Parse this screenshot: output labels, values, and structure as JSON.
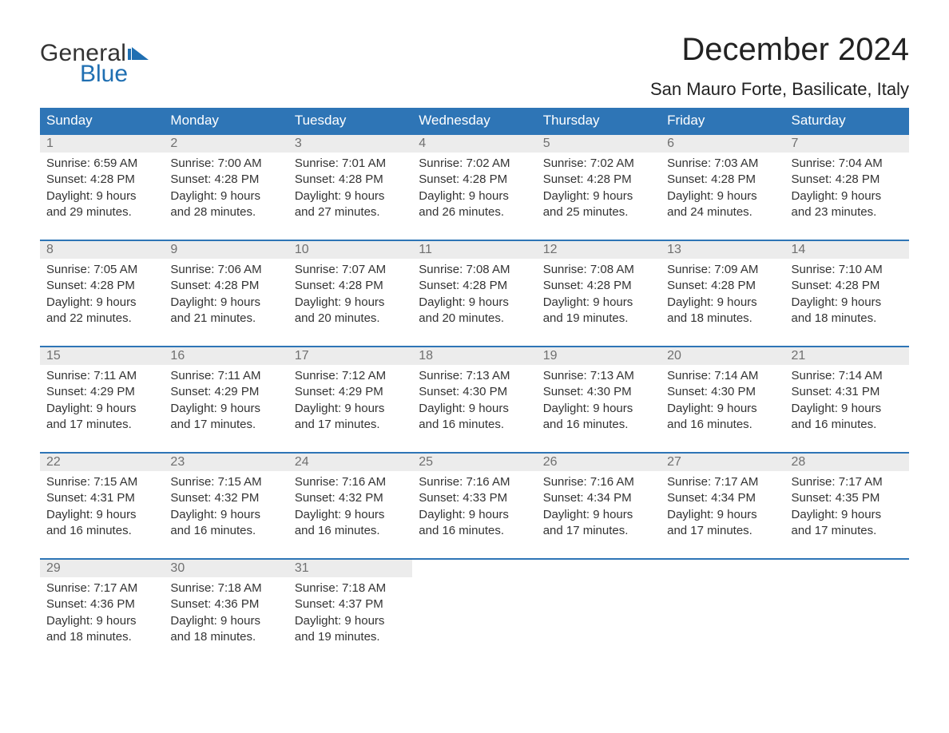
{
  "logo": {
    "word1": "General",
    "word2": "Blue",
    "flag_color": "#1f6fb2"
  },
  "title": "December 2024",
  "location": "San Mauro Forte, Basilicate, Italy",
  "colors": {
    "header_bg": "#2e75b6",
    "header_text": "#ffffff",
    "daynum_bg": "#ececec",
    "daynum_text": "#707070",
    "body_text": "#333333",
    "rule": "#2e75b6",
    "background": "#ffffff"
  },
  "fonts": {
    "title_size_pt": 40,
    "location_size_pt": 22,
    "header_size_pt": 17,
    "daynum_size_pt": 16,
    "body_size_pt": 15
  },
  "day_headers": [
    "Sunday",
    "Monday",
    "Tuesday",
    "Wednesday",
    "Thursday",
    "Friday",
    "Saturday"
  ],
  "weeks": [
    [
      {
        "n": "1",
        "sunrise": "6:59 AM",
        "sunset": "4:28 PM",
        "daylight": "9 hours and 29 minutes."
      },
      {
        "n": "2",
        "sunrise": "7:00 AM",
        "sunset": "4:28 PM",
        "daylight": "9 hours and 28 minutes."
      },
      {
        "n": "3",
        "sunrise": "7:01 AM",
        "sunset": "4:28 PM",
        "daylight": "9 hours and 27 minutes."
      },
      {
        "n": "4",
        "sunrise": "7:02 AM",
        "sunset": "4:28 PM",
        "daylight": "9 hours and 26 minutes."
      },
      {
        "n": "5",
        "sunrise": "7:02 AM",
        "sunset": "4:28 PM",
        "daylight": "9 hours and 25 minutes."
      },
      {
        "n": "6",
        "sunrise": "7:03 AM",
        "sunset": "4:28 PM",
        "daylight": "9 hours and 24 minutes."
      },
      {
        "n": "7",
        "sunrise": "7:04 AM",
        "sunset": "4:28 PM",
        "daylight": "9 hours and 23 minutes."
      }
    ],
    [
      {
        "n": "8",
        "sunrise": "7:05 AM",
        "sunset": "4:28 PM",
        "daylight": "9 hours and 22 minutes."
      },
      {
        "n": "9",
        "sunrise": "7:06 AM",
        "sunset": "4:28 PM",
        "daylight": "9 hours and 21 minutes."
      },
      {
        "n": "10",
        "sunrise": "7:07 AM",
        "sunset": "4:28 PM",
        "daylight": "9 hours and 20 minutes."
      },
      {
        "n": "11",
        "sunrise": "7:08 AM",
        "sunset": "4:28 PM",
        "daylight": "9 hours and 20 minutes."
      },
      {
        "n": "12",
        "sunrise": "7:08 AM",
        "sunset": "4:28 PM",
        "daylight": "9 hours and 19 minutes."
      },
      {
        "n": "13",
        "sunrise": "7:09 AM",
        "sunset": "4:28 PM",
        "daylight": "9 hours and 18 minutes."
      },
      {
        "n": "14",
        "sunrise": "7:10 AM",
        "sunset": "4:28 PM",
        "daylight": "9 hours and 18 minutes."
      }
    ],
    [
      {
        "n": "15",
        "sunrise": "7:11 AM",
        "sunset": "4:29 PM",
        "daylight": "9 hours and 17 minutes."
      },
      {
        "n": "16",
        "sunrise": "7:11 AM",
        "sunset": "4:29 PM",
        "daylight": "9 hours and 17 minutes."
      },
      {
        "n": "17",
        "sunrise": "7:12 AM",
        "sunset": "4:29 PM",
        "daylight": "9 hours and 17 minutes."
      },
      {
        "n": "18",
        "sunrise": "7:13 AM",
        "sunset": "4:30 PM",
        "daylight": "9 hours and 16 minutes."
      },
      {
        "n": "19",
        "sunrise": "7:13 AM",
        "sunset": "4:30 PM",
        "daylight": "9 hours and 16 minutes."
      },
      {
        "n": "20",
        "sunrise": "7:14 AM",
        "sunset": "4:30 PM",
        "daylight": "9 hours and 16 minutes."
      },
      {
        "n": "21",
        "sunrise": "7:14 AM",
        "sunset": "4:31 PM",
        "daylight": "9 hours and 16 minutes."
      }
    ],
    [
      {
        "n": "22",
        "sunrise": "7:15 AM",
        "sunset": "4:31 PM",
        "daylight": "9 hours and 16 minutes."
      },
      {
        "n": "23",
        "sunrise": "7:15 AM",
        "sunset": "4:32 PM",
        "daylight": "9 hours and 16 minutes."
      },
      {
        "n": "24",
        "sunrise": "7:16 AM",
        "sunset": "4:32 PM",
        "daylight": "9 hours and 16 minutes."
      },
      {
        "n": "25",
        "sunrise": "7:16 AM",
        "sunset": "4:33 PM",
        "daylight": "9 hours and 16 minutes."
      },
      {
        "n": "26",
        "sunrise": "7:16 AM",
        "sunset": "4:34 PM",
        "daylight": "9 hours and 17 minutes."
      },
      {
        "n": "27",
        "sunrise": "7:17 AM",
        "sunset": "4:34 PM",
        "daylight": "9 hours and 17 minutes."
      },
      {
        "n": "28",
        "sunrise": "7:17 AM",
        "sunset": "4:35 PM",
        "daylight": "9 hours and 17 minutes."
      }
    ],
    [
      {
        "n": "29",
        "sunrise": "7:17 AM",
        "sunset": "4:36 PM",
        "daylight": "9 hours and 18 minutes."
      },
      {
        "n": "30",
        "sunrise": "7:18 AM",
        "sunset": "4:36 PM",
        "daylight": "9 hours and 18 minutes."
      },
      {
        "n": "31",
        "sunrise": "7:18 AM",
        "sunset": "4:37 PM",
        "daylight": "9 hours and 19 minutes."
      },
      null,
      null,
      null,
      null
    ]
  ],
  "labels": {
    "sunrise": "Sunrise: ",
    "sunset": "Sunset: ",
    "daylight": "Daylight: "
  }
}
